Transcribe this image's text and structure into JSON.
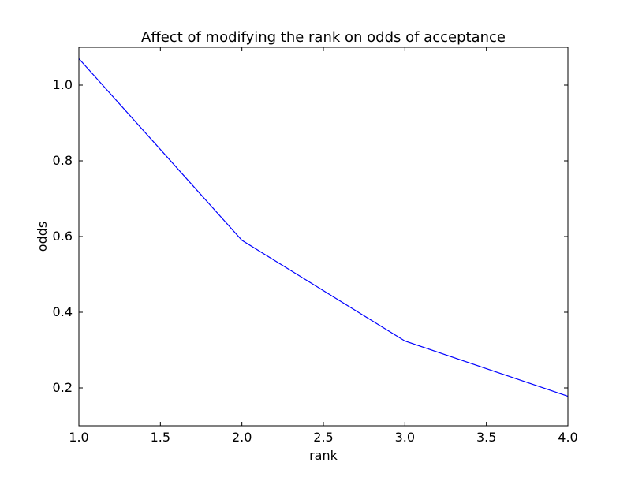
{
  "chart_data": {
    "type": "line",
    "title": "Affect of modifying the rank on odds of acceptance",
    "xlabel": "rank",
    "ylabel": "odds",
    "xlim": [
      1.0,
      4.0
    ],
    "ylim": [
      0.1,
      1.1
    ],
    "x_ticks": [
      "1.0",
      "1.5",
      "2.0",
      "2.5",
      "3.0",
      "3.5",
      "4.0"
    ],
    "y_ticks": [
      "0.2",
      "0.4",
      "0.6",
      "0.8",
      "1.0"
    ],
    "grid": false,
    "legend": "none",
    "series": [
      {
        "color": "#0000ff",
        "x": [
          1.0,
          2.0,
          3.0,
          4.0
        ],
        "y": [
          1.07,
          0.59,
          0.324,
          0.178
        ]
      }
    ]
  }
}
